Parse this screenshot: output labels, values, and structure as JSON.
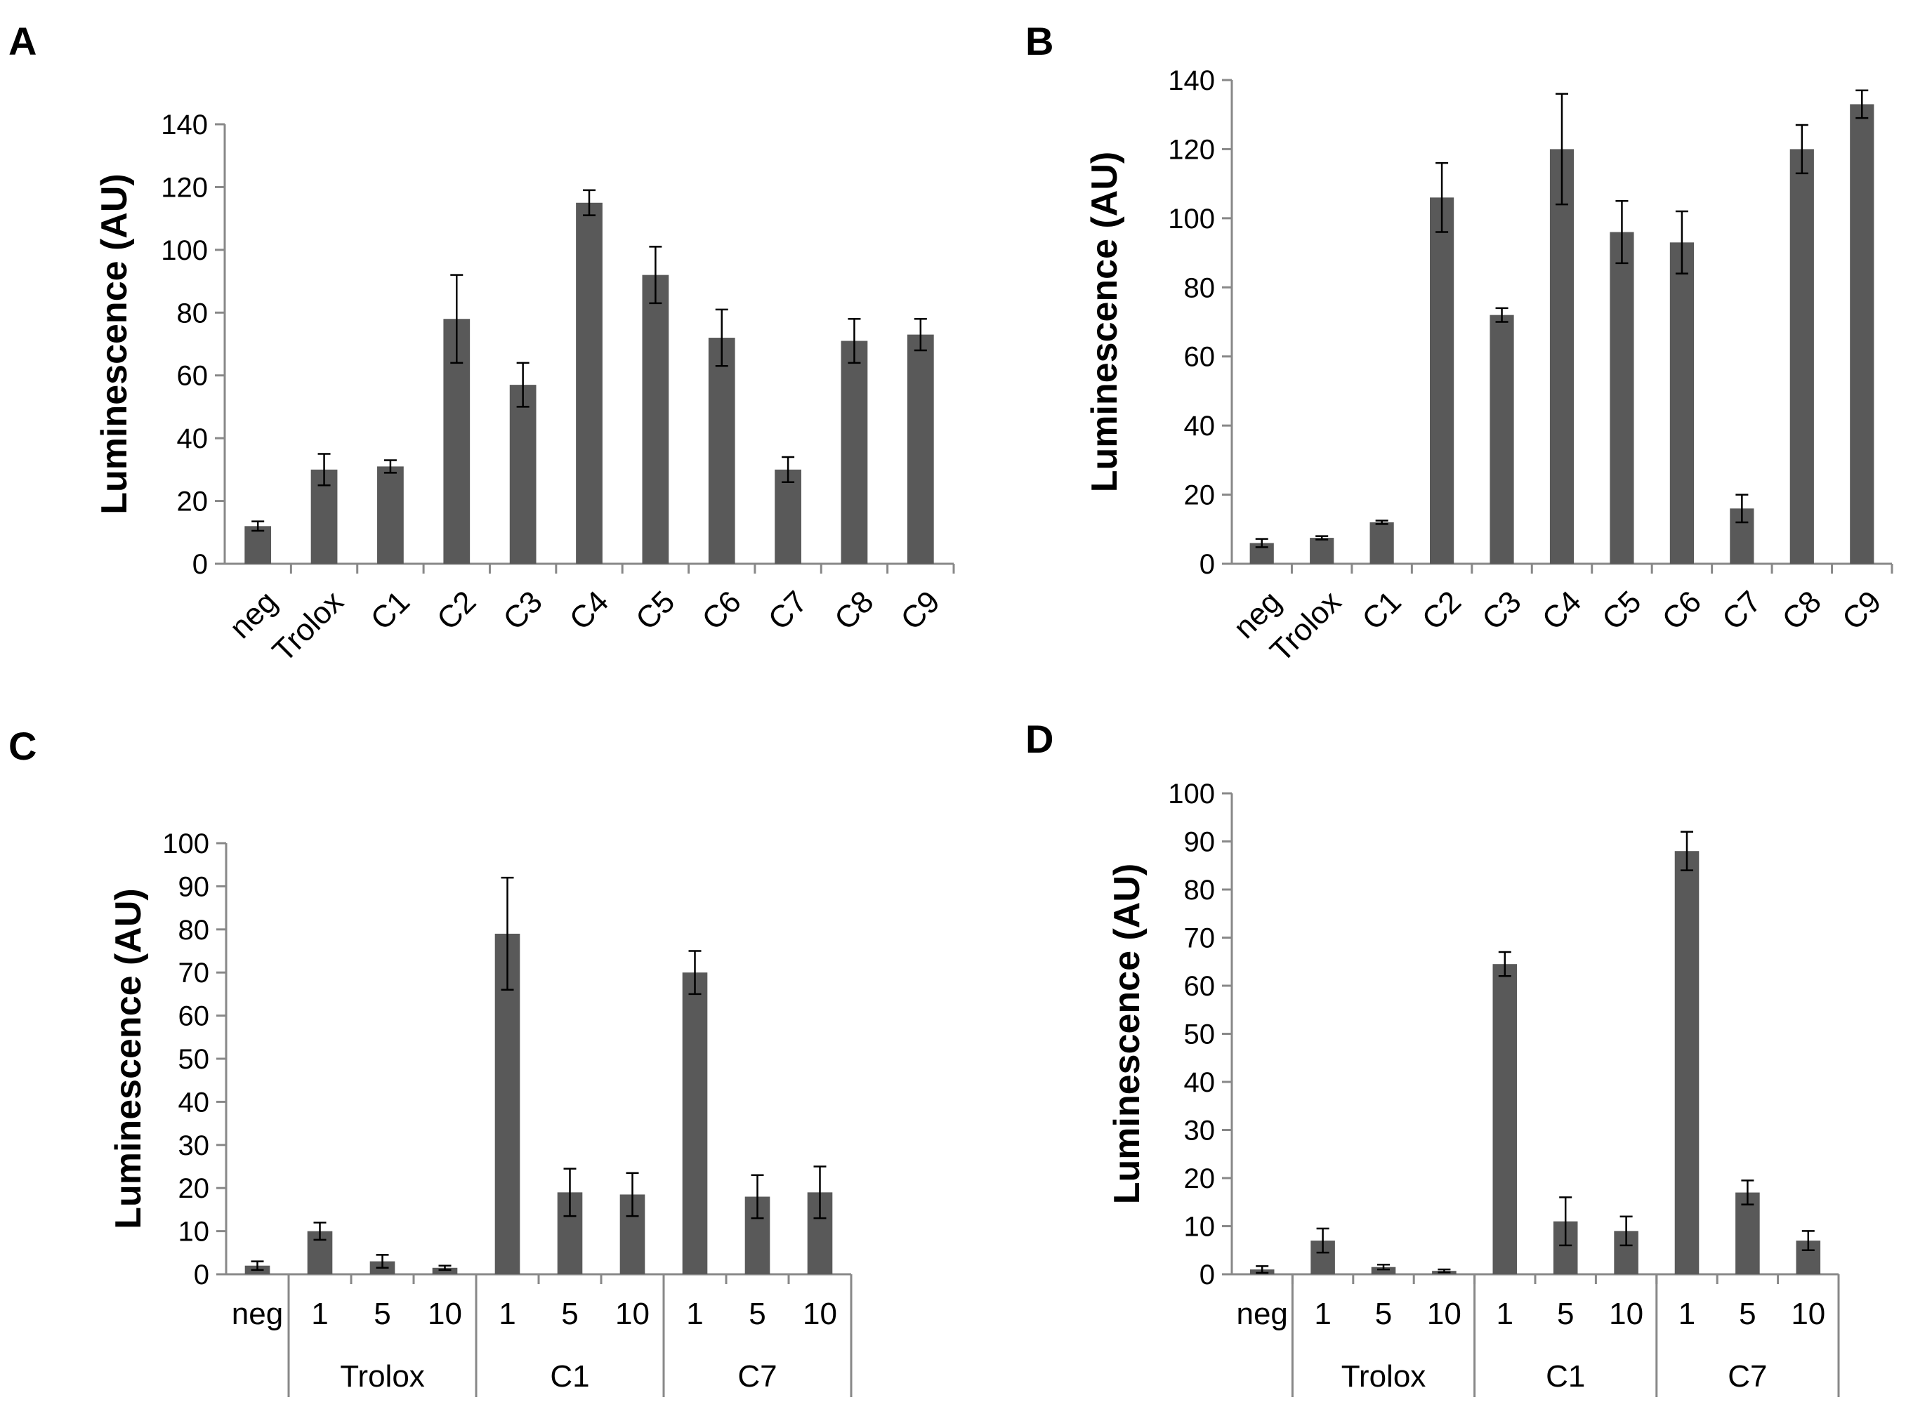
{
  "chart_data": [
    {
      "panel": "A",
      "type": "bar",
      "ylabel": "Luminescence (AU)",
      "ylim": [
        0,
        140
      ],
      "yticks": [
        0,
        20,
        40,
        60,
        80,
        100,
        120,
        140
      ],
      "categories": [
        "neg",
        "Trolox",
        "C1",
        "C2",
        "C3",
        "C4",
        "C5",
        "C6",
        "C7",
        "C8",
        "C9"
      ],
      "values": [
        12,
        30,
        31,
        78,
        57,
        115,
        92,
        72,
        30,
        71,
        73
      ],
      "errors": [
        1.5,
        5,
        2,
        14,
        7,
        4,
        9,
        9,
        4,
        7,
        5
      ],
      "color": "#595959"
    },
    {
      "panel": "B",
      "type": "bar",
      "ylabel": "Luminescence (AU)",
      "ylim": [
        0,
        140
      ],
      "yticks": [
        0,
        20,
        40,
        60,
        80,
        100,
        120,
        140
      ],
      "categories": [
        "neg",
        "Trolox",
        "C1",
        "C2",
        "C3",
        "C4",
        "C5",
        "C6",
        "C7",
        "C8",
        "C9"
      ],
      "values": [
        6,
        7.5,
        12,
        106,
        72,
        120,
        96,
        93,
        16,
        120,
        133
      ],
      "errors": [
        1.2,
        0.5,
        0.5,
        10,
        2,
        16,
        9,
        9,
        4,
        7,
        4
      ],
      "color": "#595959"
    },
    {
      "panel": "C",
      "type": "bar",
      "ylabel": "Luminescence (AU)",
      "ylim": [
        0,
        100
      ],
      "yticks": [
        0,
        10,
        20,
        30,
        40,
        50,
        60,
        70,
        80,
        90,
        100
      ],
      "categories": [
        "neg",
        "1",
        "5",
        "10",
        "1",
        "5",
        "10",
        "1",
        "5",
        "10"
      ],
      "groups": [
        {
          "label": "Trolox",
          "start": 1,
          "end": 3
        },
        {
          "label": "C1",
          "start": 4,
          "end": 6
        },
        {
          "label": "C7",
          "start": 7,
          "end": 9
        }
      ],
      "values": [
        2,
        10,
        3,
        1.5,
        79,
        19,
        18.5,
        70,
        18,
        19
      ],
      "errors": [
        1,
        2,
        1.5,
        0.5,
        13,
        5.5,
        5,
        5,
        5,
        6
      ],
      "color": "#595959"
    },
    {
      "panel": "D",
      "type": "bar",
      "ylabel": "Luminescence (AU)",
      "ylim": [
        0,
        100
      ],
      "yticks": [
        0,
        10,
        20,
        30,
        40,
        50,
        60,
        70,
        80,
        90,
        100
      ],
      "categories": [
        "neg",
        "1",
        "5",
        "10",
        "1",
        "5",
        "10",
        "1",
        "5",
        "10"
      ],
      "groups": [
        {
          "label": "Trolox",
          "start": 1,
          "end": 3
        },
        {
          "label": "C1",
          "start": 4,
          "end": 6
        },
        {
          "label": "C7",
          "start": 7,
          "end": 9
        }
      ],
      "values": [
        1,
        7,
        1.5,
        0.7,
        64.5,
        11,
        9,
        88,
        17,
        7
      ],
      "errors": [
        0.7,
        2.5,
        0.5,
        0.3,
        2.5,
        5,
        3,
        4,
        2.5,
        2
      ],
      "color": "#595959"
    }
  ]
}
